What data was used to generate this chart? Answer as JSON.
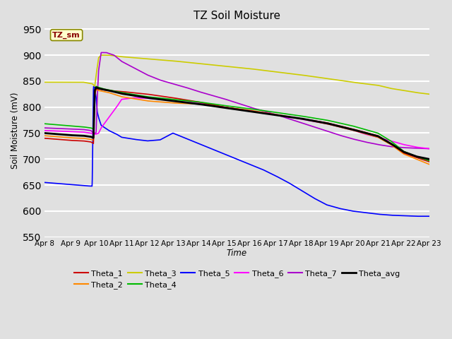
{
  "title": "TZ Soil Moisture",
  "ylabel": "Soil Moisture (mV)",
  "xlabel": "Time",
  "ylim": [
    550,
    960
  ],
  "yticks": [
    550,
    600,
    650,
    700,
    750,
    800,
    850,
    900,
    950
  ],
  "xtick_labels": [
    "Apr 8",
    "Apr 9",
    "Apr 10",
    "Apr 11",
    "Apr 12",
    "Apr 13",
    "Apr 14",
    "Apr 15",
    "Apr 16",
    "Apr 17",
    "Apr 18",
    "Apr 19",
    "Apr 20",
    "Apr 21",
    "Apr 22",
    "Apr 23"
  ],
  "background_color": "#e0e0e0",
  "plot_bg_color": "#e0e0e0",
  "label_box_color": "#ffffcc",
  "label_box_text": "TZ_sm",
  "label_box_text_color": "#880000",
  "series_colors": {
    "Theta_1": "#cc0000",
    "Theta_2": "#ff8800",
    "Theta_3": "#cccc00",
    "Theta_4": "#00bb00",
    "Theta_5": "#0000ff",
    "Theta_6": "#ff00ff",
    "Theta_7": "#aa00cc",
    "Theta_avg": "#000000"
  },
  "series_linewidths": {
    "Theta_1": 1.2,
    "Theta_2": 1.2,
    "Theta_3": 1.2,
    "Theta_4": 1.2,
    "Theta_5": 1.2,
    "Theta_6": 1.2,
    "Theta_7": 1.2,
    "Theta_avg": 2.0
  },
  "grid_color": "#ffffff",
  "grid_lw": 1.5
}
